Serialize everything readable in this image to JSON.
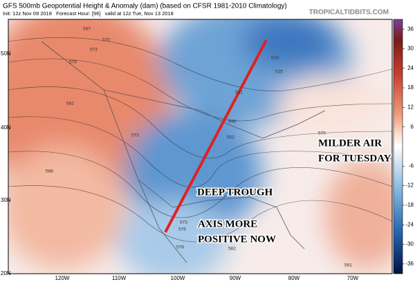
{
  "header": {
    "title": "GFS 500mb Geopotential Height & Anomaly (dam) (based on CFSR 1981-2010 Climatology)",
    "subtitle": "Init: 12z Nov 09 2018   Forecast Hour: [96]   valid at 12z Tue, Nov 13 2018",
    "credit": "TROPICALTIDBITS.COM"
  },
  "map": {
    "lat_labels": [
      "50N",
      "40N",
      "30N",
      "20N"
    ],
    "lon_labels": [
      "120W",
      "110W",
      "100W",
      "90W",
      "80W",
      "70W"
    ],
    "contour_labels": [
      "567",
      "570",
      "573",
      "576",
      "582",
      "588",
      "573",
      "519",
      "525",
      "531",
      "546",
      "552",
      "570",
      "573",
      "576",
      "579",
      "582",
      "591"
    ],
    "annotations": [
      [
        "MILDER AIR",
        "FOR TUESDAY"
      ],
      [
        "DEEP TROUGH"
      ],
      [
        "AXIS MORE",
        "POSITIVE NOW"
      ]
    ]
  },
  "colorbar": {
    "clim": [
      -39,
      39
    ],
    "ticks": [
      36,
      30,
      24,
      18,
      12,
      6,
      -6,
      -12,
      -18,
      -24,
      -30,
      -36
    ]
  }
}
